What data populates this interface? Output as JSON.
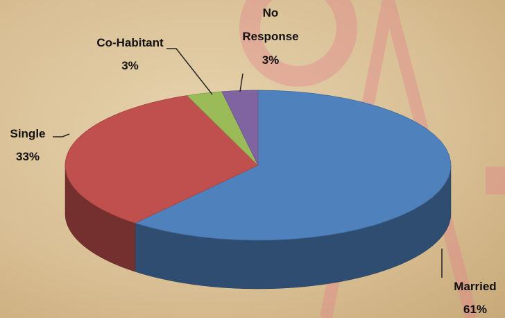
{
  "chart_data": {
    "type": "pie3d",
    "categories": [
      "Married",
      "Single",
      "Co-Habitant",
      "No Response"
    ],
    "values": [
      61,
      33,
      3,
      3
    ],
    "value_labels": [
      "61%",
      "33%",
      "3%",
      "3%"
    ],
    "colors": [
      "#4f81bd",
      "#c0504d",
      "#9bbb59",
      "#8064a2"
    ],
    "start_angle": 0,
    "direction": "clockwise"
  }
}
